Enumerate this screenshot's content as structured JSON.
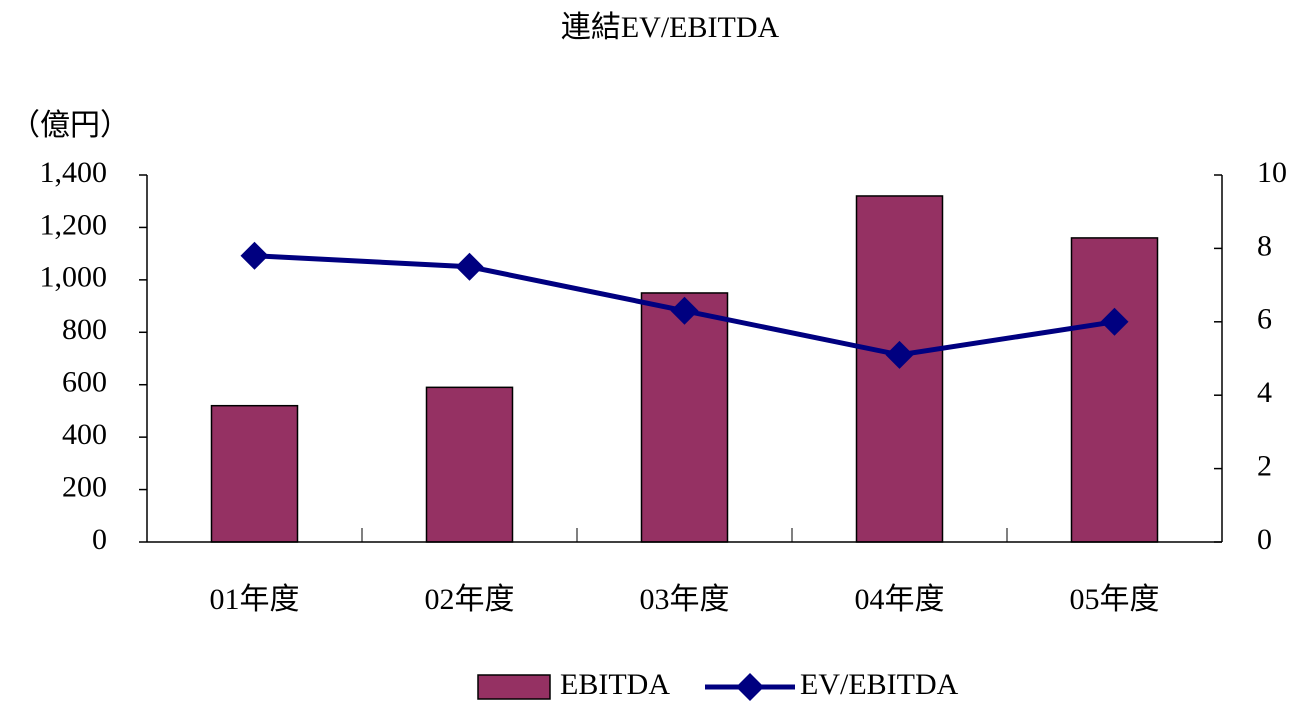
{
  "chart_data": {
    "type": "bar_line",
    "title": "連結EV/EBITDA",
    "y_label": "（億円）",
    "categories": [
      "01年度",
      "02年度",
      "03年度",
      "04年度",
      "05年度"
    ],
    "series": [
      {
        "name": "EBITDA",
        "type": "bar",
        "color": "#953163",
        "values": [
          520,
          590,
          950,
          1320,
          1160
        ]
      },
      {
        "name": "EV/EBITDA",
        "type": "line",
        "axis": "y2",
        "color": "#000080",
        "values": [
          7.8,
          7.5,
          6.3,
          5.1,
          6.0
        ]
      }
    ],
    "ylim": [
      0,
      1400
    ],
    "yticks": [
      0,
      200,
      400,
      600,
      800,
      {
        "value": 1000,
        "label": "1,000"
      },
      {
        "value": 1200,
        "label": "1,200"
      },
      {
        "value": 1400,
        "label": "1,400"
      }
    ],
    "y2lim": [
      0,
      10
    ],
    "y2ticks": [
      0,
      2,
      4,
      6,
      8,
      10
    ],
    "legend": "bottom"
  }
}
